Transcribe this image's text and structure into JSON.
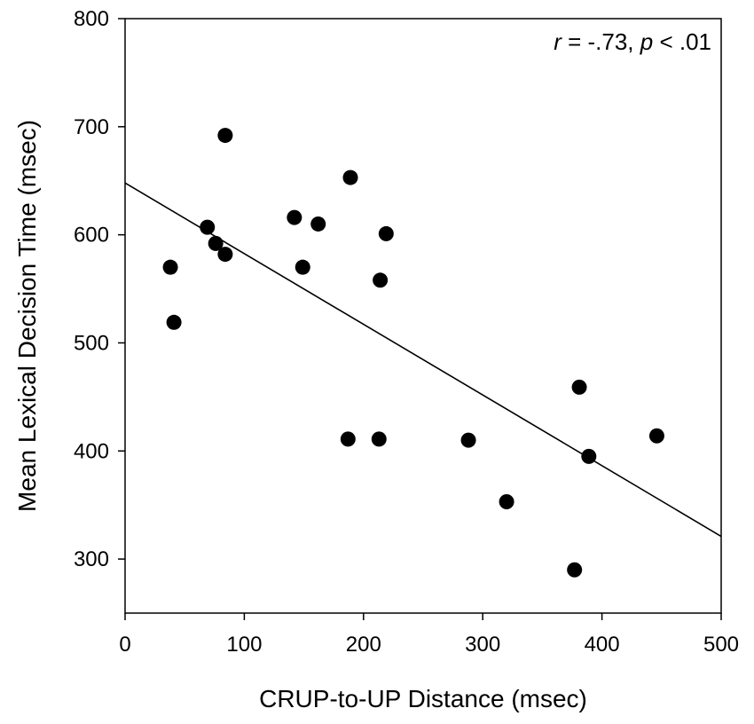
{
  "chart_data": {
    "type": "scatter",
    "title": "",
    "xlabel": "CRUP-to-UP Distance (msec)",
    "ylabel": "Mean Lexical Decision Time (msec)",
    "xlim": [
      0,
      500
    ],
    "ylim": [
      250,
      800
    ],
    "xticks": [
      0,
      100,
      200,
      300,
      400,
      500
    ],
    "yticks": [
      300,
      400,
      500,
      600,
      700,
      800
    ],
    "grid": false,
    "annotation": {
      "r_symbol": "r",
      "r_value": " = -.73, ",
      "p_symbol": "p",
      "p_value": " < .01"
    },
    "regression_line": {
      "x": [
        0,
        500
      ],
      "y": [
        648,
        321
      ]
    },
    "series": [
      {
        "x": [
          38,
          41,
          69,
          76,
          84,
          84,
          142,
          149,
          162,
          187,
          189,
          213,
          214,
          219,
          288,
          320,
          377,
          381,
          389,
          446
        ],
        "y": [
          570,
          519,
          607,
          592,
          582,
          692,
          616,
          570,
          610,
          411,
          653,
          411,
          558,
          601,
          410,
          353,
          290,
          459,
          395,
          414
        ]
      }
    ]
  }
}
